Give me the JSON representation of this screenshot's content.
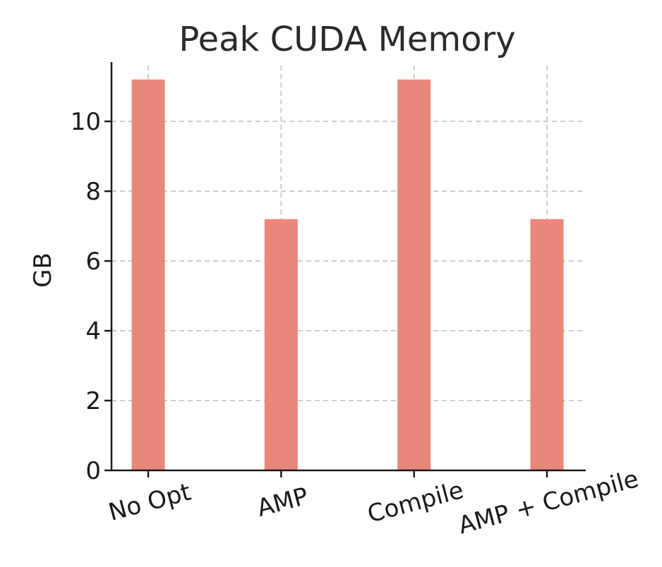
{
  "chart_data": {
    "type": "bar",
    "title": "Peak CUDA Memory",
    "xlabel": "",
    "ylabel": "GB",
    "categories": [
      "No Opt",
      "AMP",
      "Compile",
      "AMP + Compile"
    ],
    "values": [
      11.2,
      7.2,
      11.2,
      7.2
    ],
    "ylim": [
      0,
      11.7
    ],
    "yticks": [
      0,
      2,
      4,
      6,
      8,
      10
    ],
    "grid": true,
    "legend": "none",
    "colors": {
      "bar": "#E8877A",
      "axis": "#1a1a1a",
      "grid": "#cccccc",
      "text": "#2b2b2b"
    }
  }
}
